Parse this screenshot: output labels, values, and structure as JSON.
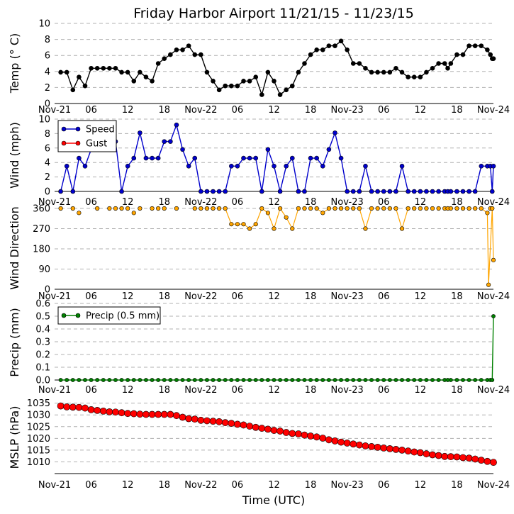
{
  "title": "Friday Harbor Airport 11/21/15 - 11/23/15",
  "xlabel": "Time (UTC)",
  "x_ticks": [
    "Nov-21",
    "06",
    "12",
    "18",
    "Nov-22",
    "06",
    "12",
    "18",
    "Nov-23",
    "06",
    "12",
    "18",
    "Nov-24"
  ],
  "chart_data": [
    {
      "type": "line",
      "ylabel": "Temp (° C)",
      "ylim": [
        0,
        10
      ],
      "yticks": [
        "0",
        "2",
        "4",
        "6",
        "8",
        "10"
      ],
      "grid": true,
      "color": "#000000",
      "x_hours": [
        1,
        2,
        3,
        4,
        5,
        6,
        7,
        8,
        9,
        10,
        11,
        12,
        13,
        14,
        15,
        16,
        17,
        18,
        19,
        20,
        21,
        22,
        23,
        24,
        25,
        26,
        27,
        28,
        29,
        30,
        31,
        32,
        33,
        34,
        35,
        36,
        37,
        38,
        39,
        40,
        41,
        42,
        43,
        44,
        45,
        46,
        47,
        48,
        49,
        50,
        51,
        52,
        53,
        54,
        55,
        56,
        57,
        58,
        59,
        60,
        61,
        62,
        63,
        64,
        64.5,
        65,
        66,
        67,
        68,
        69,
        70,
        71,
        71.5,
        71.8,
        72
      ],
      "values": [
        3.9,
        3.9,
        1.7,
        3.3,
        2.2,
        4.4,
        4.4,
        4.4,
        4.4,
        4.4,
        3.9,
        3.9,
        2.8,
        3.9,
        3.3,
        2.8,
        5.0,
        5.6,
        6.1,
        6.7,
        6.7,
        7.2,
        6.1,
        6.1,
        3.9,
        2.8,
        1.7,
        2.2,
        2.2,
        2.2,
        2.8,
        2.8,
        3.3,
        1.1,
        3.9,
        2.8,
        1.1,
        1.7,
        2.2,
        3.9,
        5.0,
        6.1,
        6.7,
        6.7,
        7.2,
        7.2,
        7.8,
        6.7,
        5.0,
        5.0,
        4.4,
        3.9,
        3.9,
        3.9,
        3.9,
        4.4,
        3.9,
        3.3,
        3.3,
        3.3,
        3.9,
        4.4,
        5.0,
        5.0,
        4.4,
        5.0,
        6.1,
        6.1,
        7.2,
        7.2,
        7.2,
        6.7,
        6.1,
        5.6,
        5.6
      ]
    },
    {
      "type": "line",
      "ylabel": "Wind (mph)",
      "ylim": [
        0,
        10
      ],
      "yticks": [
        "0",
        "2",
        "4",
        "6",
        "8",
        "10"
      ],
      "grid": true,
      "legend_position": "top-left",
      "series": [
        {
          "name": "Speed",
          "color": "#0000cc",
          "x_hours": [
            1,
            2,
            3,
            4,
            5,
            6,
            7,
            8,
            9,
            10,
            11,
            12,
            13,
            14,
            15,
            16,
            17,
            18,
            19,
            20,
            21,
            22,
            23,
            24,
            25,
            26,
            27,
            28,
            29,
            30,
            31,
            32,
            33,
            34,
            35,
            36,
            37,
            38,
            39,
            40,
            41,
            42,
            43,
            44,
            45,
            46,
            47,
            48,
            49,
            50,
            51,
            52,
            53,
            54,
            55,
            56,
            57,
            58,
            59,
            60,
            61,
            62,
            63,
            64,
            64.5,
            65,
            66,
            67,
            68,
            69,
            70,
            71,
            71.5,
            71.8,
            72
          ],
          "values": [
            0,
            3.5,
            0,
            4.6,
            3.5,
            5.8,
            5.8,
            5.8,
            6.9,
            6.9,
            0,
            3.5,
            4.6,
            8.1,
            4.6,
            4.6,
            4.6,
            6.9,
            6.9,
            9.2,
            5.8,
            3.5,
            4.6,
            0,
            0,
            0,
            0,
            0,
            3.5,
            3.5,
            4.6,
            4.6,
            4.6,
            0,
            5.8,
            3.5,
            0,
            3.5,
            4.6,
            0,
            0,
            4.6,
            4.6,
            3.5,
            5.8,
            8.1,
            4.6,
            0,
            0,
            0,
            3.5,
            0,
            0,
            0,
            0,
            0,
            3.5,
            0,
            0,
            0,
            0,
            0,
            0,
            0,
            0,
            0,
            0,
            0,
            0,
            0,
            3.5,
            3.5,
            3.5,
            0,
            3.5
          ]
        },
        {
          "name": "Gust",
          "color": "#ff0000",
          "x_hours": [],
          "values": []
        }
      ]
    },
    {
      "type": "scatter",
      "ylabel": "Wind Direction",
      "ylim": [
        0,
        360
      ],
      "yticks": [
        "0",
        "90",
        "180",
        "270",
        "360"
      ],
      "grid": true,
      "color": "#ffa500",
      "points": [
        [
          1,
          360
        ],
        [
          3,
          360
        ],
        [
          4,
          340
        ],
        [
          7,
          360
        ],
        [
          9,
          360
        ],
        [
          10,
          360
        ],
        [
          11,
          360
        ],
        [
          12,
          360
        ],
        [
          13,
          340
        ],
        [
          14,
          360
        ],
        [
          16,
          360
        ],
        [
          17,
          360
        ],
        [
          18,
          360
        ],
        [
          20,
          360
        ],
        [
          23,
          360
        ],
        [
          24,
          360
        ],
        [
          25,
          360
        ],
        [
          26,
          360
        ],
        [
          27,
          360
        ],
        [
          28,
          360
        ],
        [
          29,
          290
        ],
        [
          30,
          290
        ],
        [
          31,
          290
        ],
        [
          32,
          270
        ],
        [
          33,
          290
        ],
        [
          34,
          360
        ],
        [
          35,
          340
        ],
        [
          36,
          270
        ],
        [
          37,
          360
        ],
        [
          38,
          320
        ],
        [
          39,
          270
        ],
        [
          40,
          360
        ],
        [
          41,
          360
        ],
        [
          42,
          360
        ],
        [
          43,
          360
        ],
        [
          44,
          340
        ],
        [
          45,
          360
        ],
        [
          46,
          360
        ],
        [
          47,
          360
        ],
        [
          48,
          360
        ],
        [
          49,
          360
        ],
        [
          50,
          360
        ],
        [
          51,
          270
        ],
        [
          52,
          360
        ],
        [
          53,
          360
        ],
        [
          54,
          360
        ],
        [
          55,
          360
        ],
        [
          56,
          360
        ],
        [
          57,
          270
        ],
        [
          58,
          360
        ],
        [
          59,
          360
        ],
        [
          60,
          360
        ],
        [
          61,
          360
        ],
        [
          62,
          360
        ],
        [
          63,
          360
        ],
        [
          64,
          360
        ],
        [
          64.5,
          360
        ],
        [
          65,
          360
        ],
        [
          66,
          360
        ],
        [
          67,
          360
        ],
        [
          68,
          360
        ],
        [
          69,
          360
        ],
        [
          70,
          360
        ],
        [
          71,
          340
        ],
        [
          71.5,
          360
        ],
        [
          71.2,
          20
        ],
        [
          71.8,
          360
        ],
        [
          72,
          130
        ]
      ],
      "line_segments": [
        [
          [
            28,
            360
          ],
          [
            29,
            290
          ],
          [
            30,
            290
          ],
          [
            31,
            290
          ],
          [
            32,
            270
          ],
          [
            33,
            290
          ],
          [
            34,
            360
          ],
          [
            35,
            340
          ],
          [
            36,
            270
          ],
          [
            37,
            360
          ],
          [
            38,
            320
          ],
          [
            39,
            270
          ],
          [
            40,
            360
          ]
        ],
        [
          [
            43,
            360
          ],
          [
            44,
            340
          ],
          [
            45,
            360
          ]
        ],
        [
          [
            50,
            360
          ],
          [
            51,
            270
          ],
          [
            52,
            360
          ]
        ],
        [
          [
            56,
            360
          ],
          [
            57,
            270
          ],
          [
            58,
            360
          ]
        ],
        [
          [
            70,
            360
          ],
          [
            71,
            340
          ],
          [
            71.2,
            20
          ],
          [
            71.8,
            360
          ],
          [
            72,
            130
          ]
        ]
      ]
    },
    {
      "type": "line",
      "ylabel": "Precip (mm)",
      "ylim": [
        0,
        0.6
      ],
      "yticks": [
        "0.0",
        "0.1",
        "0.2",
        "0.3",
        "0.4",
        "0.5",
        "0.6"
      ],
      "grid": true,
      "legend_position": "top-left",
      "series": [
        {
          "name": "Precip (0.5 mm)",
          "color": "#008000",
          "x_hours": [
            1,
            2,
            3,
            4,
            5,
            6,
            7,
            8,
            9,
            10,
            11,
            12,
            13,
            14,
            15,
            16,
            17,
            18,
            19,
            20,
            21,
            22,
            23,
            24,
            25,
            26,
            27,
            28,
            29,
            30,
            31,
            32,
            33,
            34,
            35,
            36,
            37,
            38,
            39,
            40,
            41,
            42,
            43,
            44,
            45,
            46,
            47,
            48,
            49,
            50,
            51,
            52,
            53,
            54,
            55,
            56,
            57,
            58,
            59,
            60,
            61,
            62,
            63,
            64,
            64.5,
            65,
            66,
            67,
            68,
            69,
            70,
            71,
            71.5,
            71.8,
            72
          ],
          "values": [
            0,
            0,
            0,
            0,
            0,
            0,
            0,
            0,
            0,
            0,
            0,
            0,
            0,
            0,
            0,
            0,
            0,
            0,
            0,
            0,
            0,
            0,
            0,
            0,
            0,
            0,
            0,
            0,
            0,
            0,
            0,
            0,
            0,
            0,
            0,
            0,
            0,
            0,
            0,
            0,
            0,
            0,
            0,
            0,
            0,
            0,
            0,
            0,
            0,
            0,
            0,
            0,
            0,
            0,
            0,
            0,
            0,
            0,
            0,
            0,
            0,
            0,
            0,
            0,
            0,
            0,
            0,
            0,
            0,
            0,
            0,
            0,
            0,
            0,
            0.5
          ]
        }
      ]
    },
    {
      "type": "line",
      "ylabel": "MSLP (hPa)",
      "ylim": [
        1005,
        1037
      ],
      "yticks": [
        "1010",
        "1015",
        "1020",
        "1025",
        "1030",
        "1035"
      ],
      "grid": true,
      "color": "#ff0000",
      "x_hours": [
        1,
        2,
        3,
        4,
        5,
        6,
        7,
        8,
        9,
        10,
        11,
        12,
        13,
        14,
        15,
        16,
        17,
        18,
        19,
        20,
        21,
        22,
        23,
        24,
        25,
        26,
        27,
        28,
        29,
        30,
        31,
        32,
        33,
        34,
        35,
        36,
        37,
        38,
        39,
        40,
        41,
        42,
        43,
        44,
        45,
        46,
        47,
        48,
        49,
        50,
        51,
        52,
        53,
        54,
        55,
        56,
        57,
        58,
        59,
        60,
        61,
        62,
        63,
        64,
        65,
        66,
        67,
        68,
        69,
        70,
        71,
        72
      ],
      "values": [
        1033.8,
        1033.4,
        1033.3,
        1033.2,
        1032.9,
        1032.2,
        1031.9,
        1031.6,
        1031.3,
        1031.2,
        1030.9,
        1030.6,
        1030.5,
        1030.3,
        1030.2,
        1030.2,
        1030.2,
        1030.2,
        1030.2,
        1029.7,
        1029.0,
        1028.4,
        1028.2,
        1027.7,
        1027.5,
        1027.3,
        1027.1,
        1026.7,
        1026.4,
        1026.0,
        1025.7,
        1025.2,
        1024.7,
        1024.3,
        1023.9,
        1023.4,
        1023.1,
        1022.5,
        1022.1,
        1021.9,
        1021.4,
        1021.0,
        1020.6,
        1020.1,
        1019.4,
        1018.9,
        1018.4,
        1018.0,
        1017.6,
        1017.2,
        1016.8,
        1016.5,
        1016.2,
        1015.9,
        1015.6,
        1015.3,
        1015.0,
        1014.6,
        1014.2,
        1013.9,
        1013.4,
        1013.0,
        1012.7,
        1012.3,
        1012.2,
        1012.1,
        1011.8,
        1011.6,
        1011.2,
        1010.7,
        1010.2,
        1009.8
      ]
    }
  ]
}
